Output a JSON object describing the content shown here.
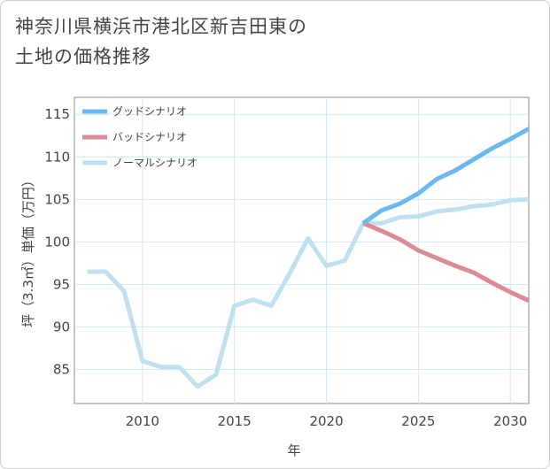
{
  "title": {
    "line1": "神奈川県横浜市港北区新吉田東の",
    "line2": "土地の価格推移"
  },
  "chart_data": {
    "type": "line",
    "xlabel": "年",
    "ylabel": "坪（3.3㎡）単価（万円）",
    "xlim": [
      2006.3,
      2031
    ],
    "ylim": [
      81,
      117
    ],
    "xticks": [
      2010,
      2015,
      2020,
      2025,
      2030
    ],
    "yticks": [
      85,
      90,
      95,
      100,
      105,
      110,
      115
    ],
    "series": [
      {
        "name": "グッドシナリオ",
        "color": "#6db8ee",
        "x": [
          2022,
          2023,
          2024,
          2025,
          2026,
          2027,
          2028,
          2029,
          2030,
          2031
        ],
        "values": [
          102.2,
          103.7,
          104.5,
          105.7,
          107.4,
          108.4,
          109.7,
          111.0,
          112.1,
          113.3
        ]
      },
      {
        "name": "バッドシナリオ",
        "color": "#dc8a95",
        "x": [
          2022,
          2023,
          2024,
          2025,
          2026,
          2027,
          2028,
          2029,
          2030,
          2031
        ],
        "values": [
          102.2,
          101.3,
          100.3,
          99.0,
          98.1,
          97.2,
          96.4,
          95.2,
          94.1,
          93.1
        ]
      },
      {
        "name": "ノーマルシナリオ",
        "color": "#bfe0ee",
        "x": [
          2007,
          2008,
          2009,
          2010,
          2011,
          2012,
          2013,
          2014,
          2015,
          2016,
          2017,
          2018,
          2019,
          2020,
          2021,
          2022,
          2023,
          2024,
          2025,
          2026,
          2027,
          2028,
          2029,
          2030,
          2031
        ],
        "values": [
          96.5,
          96.5,
          94.2,
          86.0,
          85.3,
          85.3,
          83.0,
          84.4,
          92.5,
          93.2,
          92.5,
          96.3,
          100.4,
          97.2,
          97.8,
          102.2,
          102.2,
          102.9,
          103.0,
          103.6,
          103.8,
          104.2,
          104.4,
          104.9,
          105.0
        ]
      }
    ]
  }
}
